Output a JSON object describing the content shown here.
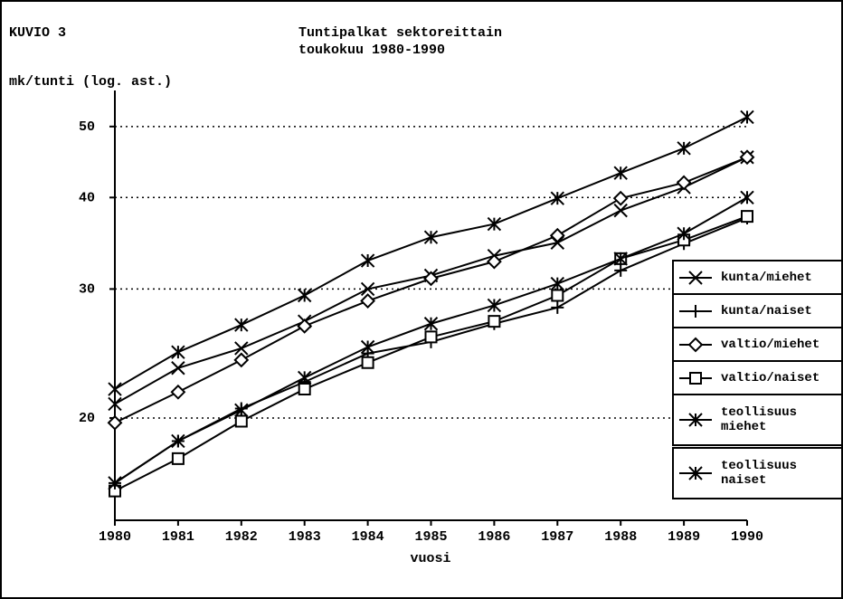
{
  "chart_data": {
    "type": "line",
    "label": "KUVIO 3",
    "title": "Tuntipalkat sektoreittain",
    "subtitle": "toukokuu 1980-1990",
    "y_label": "mk/tunti (log. ast.)",
    "x_label": "vuosi",
    "log_y": true,
    "grid": true,
    "legend": "right",
    "x": [
      1980,
      1981,
      1982,
      1983,
      1984,
      1985,
      1986,
      1987,
      1988,
      1989,
      1990
    ],
    "xlim": [
      1980,
      1990
    ],
    "xticks": [
      1980,
      1981,
      1982,
      1983,
      1984,
      1985,
      1986,
      1987,
      1988,
      1989,
      1990
    ],
    "ylim": [
      14.5,
      56
    ],
    "yticks": [
      20,
      30,
      40,
      50
    ],
    "series": [
      {
        "name": "kunta/miehet",
        "color": "#000000",
        "marker": "x",
        "values": [
          20.9,
          23.4,
          24.9,
          27.1,
          30.0,
          31.3,
          33.3,
          34.7,
          38.4,
          41.3,
          45.4
        ]
      },
      {
        "name": "kunta/naiset",
        "color": "#000000",
        "marker": "plus",
        "values": [
          16.3,
          18.6,
          20.6,
          22.4,
          24.5,
          25.4,
          26.9,
          28.3,
          31.8,
          34.6,
          37.5
        ]
      },
      {
        "name": "valtio/miehet",
        "color": "#000000",
        "marker": "diamond",
        "values": [
          19.7,
          21.7,
          24.0,
          26.7,
          28.9,
          31.0,
          32.7,
          35.5,
          39.9,
          41.9,
          45.4
        ]
      },
      {
        "name": "valtio/naiset",
        "color": "#000000",
        "marker": "square",
        "values": [
          15.9,
          17.6,
          19.8,
          21.9,
          23.8,
          25.8,
          27.1,
          29.4,
          33.0,
          35.0,
          37.7
        ]
      },
      {
        "name": "teollisuus miehet",
        "color": "#000000",
        "marker": "asterisk",
        "values": [
          21.9,
          24.6,
          26.8,
          29.4,
          32.8,
          35.3,
          36.8,
          39.9,
          43.2,
          46.7,
          51.5
        ]
      },
      {
        "name": "teollisuus naiset",
        "color": "#000000",
        "marker": "asterisk",
        "values": [
          16.3,
          18.6,
          20.5,
          22.7,
          25.0,
          26.9,
          28.5,
          30.5,
          33.0,
          35.7,
          40.0
        ]
      }
    ]
  }
}
